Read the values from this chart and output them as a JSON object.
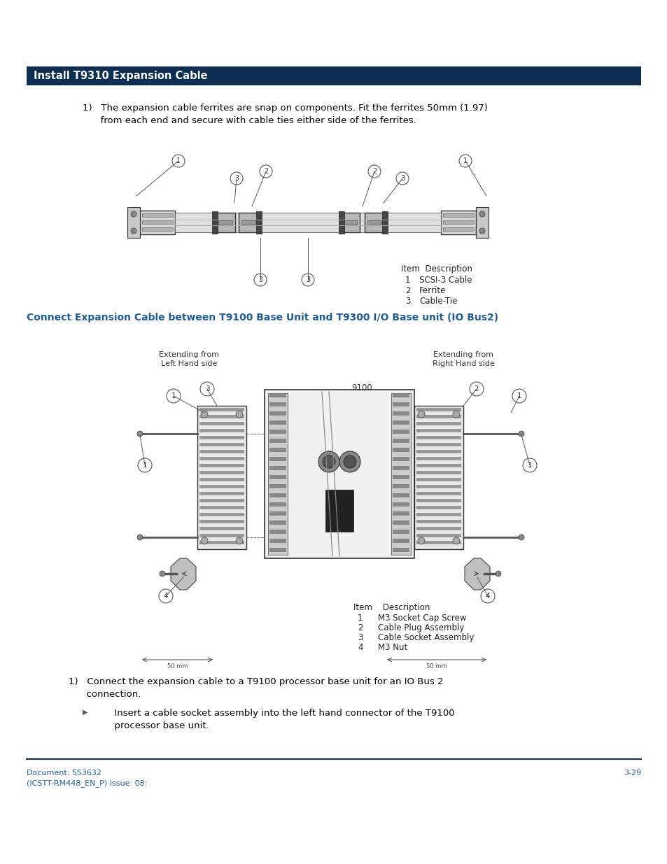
{
  "page_bg": "#ffffff",
  "header_bg": "#0d2d52",
  "header_text": "Install T9310 Expansion Cable",
  "header_text_color": "#ffffff",
  "header_fontsize": 10.5,
  "section2_text": "Connect Expansion Cable between T9100 Base Unit and T9300 I/O Base unit (IO Bus2)",
  "section2_color": "#1f5c99",
  "section2_fontsize": 10,
  "body_text_color": "#000000",
  "body_fontsize": 9.5,
  "step1_text_line1": "1)   The expansion cable ferrites are snap on components. Fit the ferrites 50mm (1.97)",
  "step1_text_line2": "      from each end and secure with cable ties either side of the ferrites.",
  "step2_text_line1": "1)   Connect the expansion cable to a T9100 processor base unit for an IO Bus 2",
  "step2_text_line2": "      connection.",
  "bullet_line1": "      Insert a cable socket assembly into the left hand connector of the T9100",
  "bullet_line2": "      processor base unit.",
  "legend1_title": "Item  Description",
  "legend1_items": [
    [
      "1",
      "SCSI-3 Cable"
    ],
    [
      "2",
      "Ferrite"
    ],
    [
      "3",
      "Cable-Tie"
    ]
  ],
  "legend2_title": "Item    Description",
  "legend2_items": [
    [
      "1",
      "M3 Socket Cap Screw"
    ],
    [
      "2",
      "Cable Plug Assembly"
    ],
    [
      "3",
      "Cable Socket Assembly"
    ],
    [
      "4",
      "M3 Nut"
    ]
  ],
  "footer_left1": "Document: 553632",
  "footer_left2": "(ICSTT-RM448_EN_P) Issue: 08:",
  "footer_right": "3-29",
  "footer_color": "#1f5c99",
  "footer_fontsize": 8,
  "extending_left": "Extending from\nLeft Hand side",
  "extending_right": "Extending from\nRight Hand side",
  "label_9100": "9100",
  "sep_line_color": "#0d2d52",
  "callout_color": "#555555",
  "diagram_line_color": "#444444",
  "dim_text_color": "#555555"
}
